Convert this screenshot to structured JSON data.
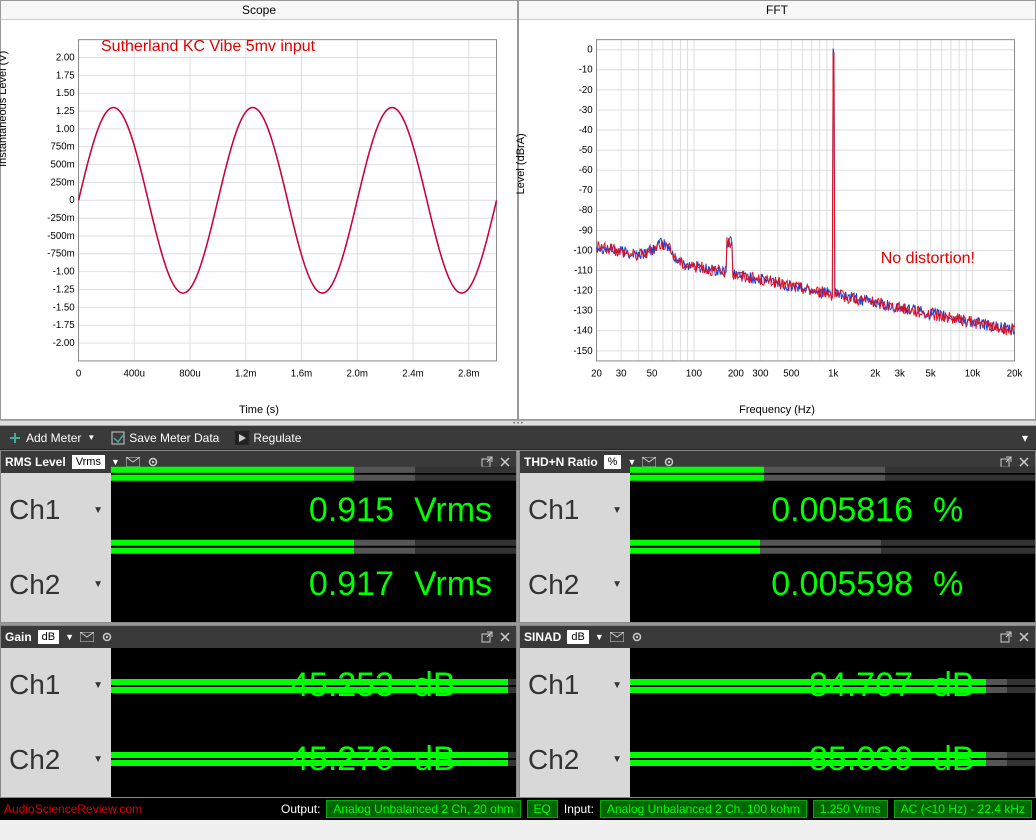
{
  "scope": {
    "title": "Scope",
    "annotation": "Sutherland KC Vibe 5mv input",
    "xlabel": "Time (s)",
    "ylabel": "Instantaneous Level (V)",
    "xlim": [
      0,
      0.003
    ],
    "ylim": [
      -2.25,
      2.25
    ],
    "xticks": [
      "0",
      "400u",
      "800u",
      "1.2m",
      "1.6m",
      "2.0m",
      "2.4m",
      "2.8m"
    ],
    "yticks": [
      "-2.00",
      "-1.75",
      "-1.50",
      "-1.25",
      "-1.00",
      "-750m",
      "-500m",
      "-250m",
      "0",
      "250m",
      "500m",
      "750m",
      "1.00",
      "1.25",
      "1.50",
      "1.75",
      "2.00"
    ],
    "amplitude": 1.3,
    "freq_hz": 1000,
    "line_color": "#c8003c",
    "grid_color": "#dddddd",
    "background": "#ffffff",
    "tick_fontsize": 10,
    "label_fontsize": 11
  },
  "fft": {
    "title": "FFT",
    "annotation": "No distortion!",
    "xlabel": "Frequency (Hz)",
    "ylabel": "Level (dBrA)",
    "xlim": [
      20,
      20000
    ],
    "ylim": [
      -155,
      5
    ],
    "xscale": "log",
    "xticks": [
      "20",
      "30",
      "50",
      "100",
      "200",
      "300",
      "500",
      "1k",
      "2k",
      "3k",
      "5k",
      "10k",
      "20k"
    ],
    "yticks": [
      "-150",
      "-140",
      "-130",
      "-120",
      "-110",
      "-100",
      "-90",
      "-80",
      "-70",
      "-60",
      "-50",
      "-40",
      "-30",
      "-20",
      "-10",
      "0"
    ],
    "peak_freq": 1000,
    "peak_level": 0,
    "noise_floor_start": -98,
    "noise_floor_end": -140,
    "hump_freq": 180,
    "hump_level": -96,
    "ch1_color": "#1040e0",
    "ch2_color": "#e01020",
    "grid_color": "#dddddd",
    "background": "#ffffff"
  },
  "toolbar": {
    "add_meter": "Add Meter",
    "save_meter": "Save Meter Data",
    "regulate": "Regulate"
  },
  "meters": {
    "rms": {
      "title": "RMS Level",
      "unit_label": "Vrms",
      "ch1": {
        "label": "Ch1",
        "value": "0.915",
        "unit": "Vrms",
        "bar_fill": 0.6,
        "bar_mid": 0.15
      },
      "ch2": {
        "label": "Ch2",
        "value": "0.917",
        "unit": "Vrms",
        "bar_fill": 0.6,
        "bar_mid": 0.15
      }
    },
    "thdn": {
      "title": "THD+N Ratio",
      "unit_label": "%",
      "ch1": {
        "label": "Ch1",
        "value": "0.005816",
        "unit": "%",
        "bar_fill": 0.33,
        "bar_mid": 0.3
      },
      "ch2": {
        "label": "Ch2",
        "value": "0.005598",
        "unit": "%",
        "bar_fill": 0.32,
        "bar_mid": 0.3
      }
    },
    "gain": {
      "title": "Gain",
      "unit_label": "dB",
      "ch1": {
        "label": "Ch1",
        "value": "45.253",
        "unit": "dB",
        "bar_fill": 0.98,
        "bar_mid": 0.0
      },
      "ch2": {
        "label": "Ch2",
        "value": "45.270",
        "unit": "dB",
        "bar_fill": 0.98,
        "bar_mid": 0.0
      }
    },
    "sinad": {
      "title": "SINAD",
      "unit_label": "dB",
      "ch1": {
        "label": "Ch1",
        "value": "84.707",
        "unit": "dB",
        "bar_fill": 0.88,
        "bar_mid": 0.05
      },
      "ch2": {
        "label": "Ch2",
        "value": "85.039",
        "unit": "dB",
        "bar_fill": 0.88,
        "bar_mid": 0.05
      }
    }
  },
  "statusbar": {
    "watermark": "AudioScienceReview.com",
    "output_label": "Output:",
    "output_value": "Analog Unbalanced 2 Ch, 20 ohm",
    "eq_label": "EQ",
    "input_label": "Input:",
    "input_value": "Analog Unbalanced 2 Ch, 100 kohm",
    "input_level": "1.250 Vrms",
    "input_filter": "AC (<10 Hz) - 22.4 kHz"
  },
  "colors": {
    "meter_green": "#00ff00",
    "meter_bg": "#000000",
    "panel_bg": "#d8d8d8",
    "toolbar_bg": "#3a3a3a",
    "annotation_red": "#e00000",
    "status_green_bg": "#006600",
    "status_green_fg": "#00ff00"
  }
}
